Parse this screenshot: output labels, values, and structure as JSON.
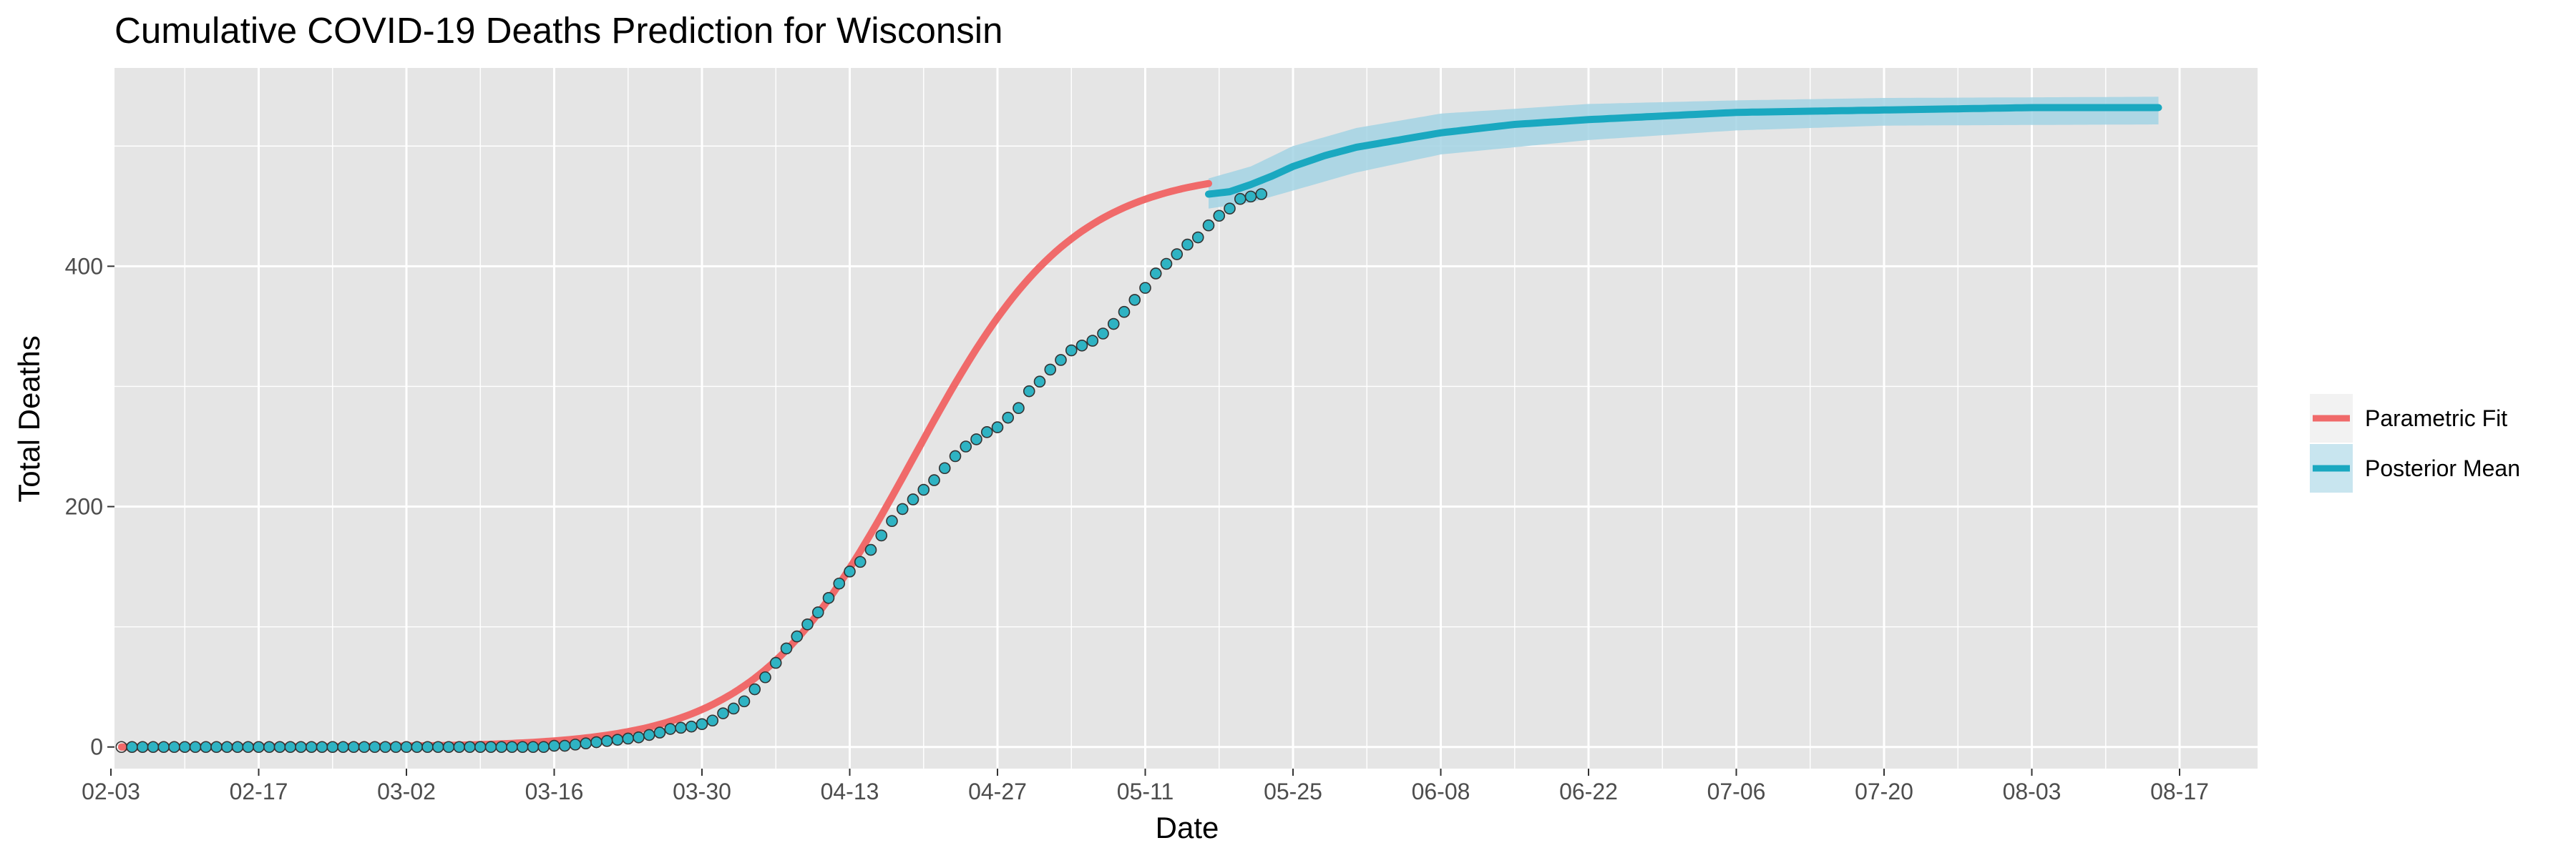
{
  "chart_data": {
    "type": "line",
    "title": "Cumulative COVID-19 Deaths Prediction for Wisconsin",
    "xlabel": "Date",
    "ylabel": "Total Deaths",
    "x_ticks": [
      "02-03",
      "02-17",
      "03-02",
      "03-16",
      "03-30",
      "04-13",
      "04-27",
      "05-11",
      "05-25",
      "06-08",
      "06-22",
      "07-06",
      "07-20",
      "08-03",
      "08-17"
    ],
    "y_ticks": [
      "0",
      "200",
      "400"
    ],
    "ylim": [
      -18,
      565
    ],
    "grid": true,
    "legend_position": "right",
    "colors": {
      "panel": "#e5e5e5",
      "grid": "#ffffff",
      "parametric_fit": "#f06a6a",
      "posterior_mean": "#1aa8c0",
      "band": "#a3d4e4",
      "point_fill": "#2fb3c3",
      "point_stroke": "#333333"
    },
    "series": [
      {
        "name": "Parametric Fit",
        "kind": "line",
        "color": "#f06a6a",
        "x_start": "02-04",
        "x_end": "05-17",
        "form": "logistic",
        "asymptote": 480,
        "midpoint": "04-19",
        "scale_days": 7.5
      },
      {
        "name": "Posterior Mean",
        "kind": "line",
        "color": "#1aa8c0",
        "x_start": "05-17",
        "x_end": "08-15",
        "points": [
          [
            "05-17",
            460
          ],
          [
            "05-19",
            462
          ],
          [
            "05-21",
            468
          ],
          [
            "05-23",
            475
          ],
          [
            "05-25",
            483
          ],
          [
            "05-28",
            492
          ],
          [
            "05-31",
            499
          ],
          [
            "06-04",
            505
          ],
          [
            "06-08",
            511
          ],
          [
            "06-15",
            518
          ],
          [
            "06-22",
            522
          ],
          [
            "06-29",
            525
          ],
          [
            "07-06",
            528
          ],
          [
            "07-20",
            530
          ],
          [
            "08-03",
            532
          ],
          [
            "08-15",
            532
          ]
        ],
        "band": [
          [
            "05-17",
            448,
            473
          ],
          [
            "05-21",
            453,
            483
          ],
          [
            "05-25",
            463,
            500
          ],
          [
            "05-31",
            478,
            515
          ],
          [
            "06-08",
            493,
            527
          ],
          [
            "06-22",
            505,
            535
          ],
          [
            "07-06",
            513,
            538
          ],
          [
            "07-20",
            517,
            540
          ],
          [
            "08-15",
            518,
            541
          ]
        ]
      }
    ],
    "observed": {
      "start_date": "02-04",
      "values": [
        0,
        0,
        0,
        0,
        0,
        0,
        0,
        0,
        0,
        0,
        0,
        0,
        0,
        0,
        0,
        0,
        0,
        0,
        0,
        0,
        0,
        0,
        0,
        0,
        0,
        0,
        0,
        0,
        0,
        0,
        0,
        0,
        0,
        0,
        0,
        0,
        0,
        0,
        0,
        0,
        0,
        1,
        1,
        2,
        3,
        4,
        5,
        6,
        7,
        8,
        10,
        12,
        15,
        16,
        17,
        19,
        22,
        28,
        32,
        38,
        48,
        58,
        70,
        82,
        92,
        102,
        112,
        124,
        136,
        146,
        154,
        164,
        176,
        188,
        198,
        206,
        214,
        222,
        232,
        242,
        250,
        256,
        262,
        266,
        274,
        282,
        296,
        304,
        314,
        322,
        330,
        334,
        338,
        344,
        352,
        362,
        372,
        382,
        394,
        402,
        410,
        418,
        424,
        434,
        442,
        448,
        456,
        458,
        460
      ]
    }
  }
}
